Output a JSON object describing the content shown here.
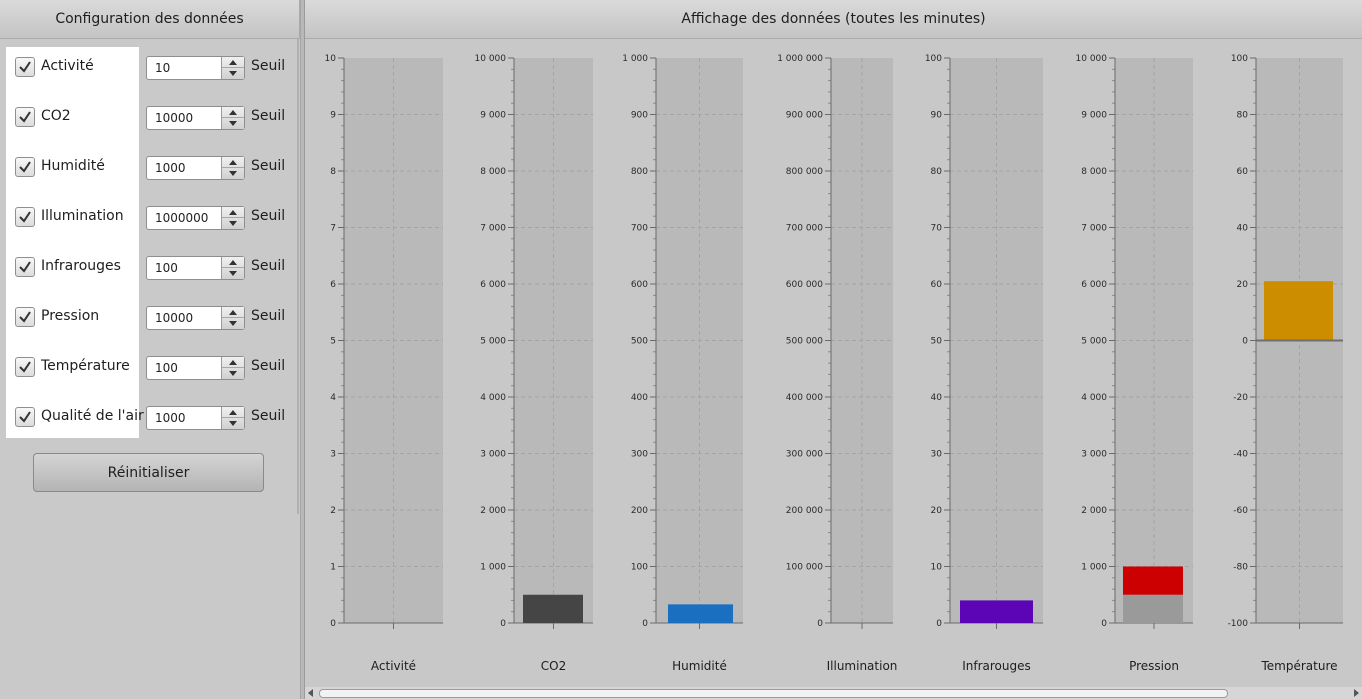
{
  "left_panel": {
    "title": "Configuration des données",
    "threshold_label": "Seuil",
    "reset_label": "Réinitialiser",
    "rows": [
      {
        "label": "Activité",
        "checked": true,
        "value": "10"
      },
      {
        "label": "CO2",
        "checked": true,
        "value": "10000"
      },
      {
        "label": "Humidité",
        "checked": true,
        "value": "1000"
      },
      {
        "label": "Illumination",
        "checked": true,
        "value": "1000000"
      },
      {
        "label": "Infrarouges",
        "checked": true,
        "value": "100"
      },
      {
        "label": "Pression",
        "checked": true,
        "value": "10000"
      },
      {
        "label": "Température",
        "checked": true,
        "value": "100"
      },
      {
        "label": "Qualité de l'air",
        "checked": true,
        "value": "1000"
      }
    ]
  },
  "right_panel": {
    "title": "Affichage des données (toutes les minutes)"
  },
  "chart_data": [
    {
      "type": "bar",
      "categories": [
        "Activité"
      ],
      "series": [
        {
          "values": [
            0
          ],
          "color": "#888888"
        }
      ],
      "ylim": [
        0,
        10
      ],
      "yticks": [
        "0",
        "1",
        "2",
        "3",
        "4",
        "5",
        "6",
        "7",
        "8",
        "9",
        "10"
      ]
    },
    {
      "type": "bar",
      "categories": [
        "CO2"
      ],
      "series": [
        {
          "values": [
            500
          ],
          "color": "#454545"
        }
      ],
      "ylim": [
        0,
        10000
      ],
      "yticks": [
        "0",
        "1 000",
        "2 000",
        "3 000",
        "4 000",
        "5 000",
        "6 000",
        "7 000",
        "8 000",
        "9 000",
        "10 000"
      ]
    },
    {
      "type": "bar",
      "categories": [
        "Humidité"
      ],
      "series": [
        {
          "values": [
            33
          ],
          "color": "#1b6fc0"
        }
      ],
      "ylim": [
        0,
        1000
      ],
      "yticks": [
        "0",
        "100",
        "200",
        "300",
        "400",
        "500",
        "600",
        "700",
        "800",
        "900",
        "1 000"
      ]
    },
    {
      "type": "bar",
      "categories": [
        "Illumination"
      ],
      "series": [
        {
          "values": [
            0
          ],
          "color": "#888888"
        }
      ],
      "ylim": [
        0,
        1000000
      ],
      "yticks": [
        "0",
        "100 000",
        "200 000",
        "300 000",
        "400 000",
        "500 000",
        "600 000",
        "700 000",
        "800 000",
        "900 000",
        "1 000 000"
      ]
    },
    {
      "type": "bar",
      "categories": [
        "Infrarouges"
      ],
      "series": [
        {
          "values": [
            4
          ],
          "color": "#5b05b6"
        }
      ],
      "ylim": [
        0,
        100
      ],
      "yticks": [
        "0",
        "10",
        "20",
        "30",
        "40",
        "50",
        "60",
        "70",
        "80",
        "90",
        "100"
      ]
    },
    {
      "type": "bar",
      "categories": [
        "Pression"
      ],
      "series": [
        {
          "values": [
            500
          ],
          "color": "#9a9a9a"
        },
        {
          "values": [
            500
          ],
          "color": "#cc0000"
        }
      ],
      "stacked": true,
      "ylim": [
        0,
        10000
      ],
      "yticks": [
        "0",
        "1 000",
        "2 000",
        "3 000",
        "4 000",
        "5 000",
        "6 000",
        "7 000",
        "8 000",
        "9 000",
        "10 000"
      ]
    },
    {
      "type": "bar",
      "categories": [
        "Température"
      ],
      "series": [
        {
          "values": [
            21
          ],
          "color": "#cc8e00"
        }
      ],
      "ylim": [
        -100,
        100
      ],
      "yticks": [
        "-100",
        "-80",
        "-60",
        "-40",
        "-20",
        "0",
        "20",
        "40",
        "60",
        "80",
        "100"
      ]
    }
  ]
}
